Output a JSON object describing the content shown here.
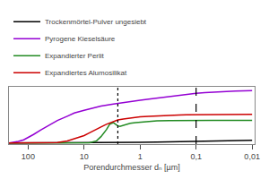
{
  "chart_data": {
    "type": "line",
    "xlabel": "Porendurchmesser dₙ [µm]",
    "log": "x",
    "xlim": [
      220,
      0.009
    ],
    "xticks": [
      100,
      10,
      1,
      {
        "value": 0.1,
        "label": "0,1"
      },
      {
        "value": 0.01,
        "label": "0,01"
      }
    ],
    "ylim": [
      -0.02,
      1.05
    ],
    "tick_labels": "x",
    "grid": false,
    "legend": "upper left",
    "series": [
      {
        "name": "Trockenmörtel-Pulver ungesiebt",
        "color": "black",
        "x": [
          220,
          150,
          100,
          50,
          20,
          10,
          5,
          2,
          1,
          0.5,
          0.2,
          0.1,
          0.05,
          0.02,
          0.01
        ],
        "values": [
          0.0,
          0.0,
          0.0,
          0.0,
          0.0,
          0.0,
          0.005,
          0.008,
          0.012,
          0.018,
          0.025,
          0.032,
          0.04,
          0.046,
          0.05
        ]
      },
      {
        "name": "Pyrogene Kieselsäure",
        "color": "#9400D3",
        "x": [
          220,
          180,
          150,
          120,
          100,
          80,
          60,
          40,
          30,
          20,
          15,
          10,
          7,
          5,
          3,
          2,
          1.5,
          1,
          0.7,
          0.5,
          0.3,
          0.2,
          0.15,
          0.1,
          0.07,
          0.05,
          0.03,
          0.02,
          0.01
        ],
        "values": [
          0.0,
          0.01,
          0.03,
          0.06,
          0.1,
          0.16,
          0.24,
          0.34,
          0.42,
          0.5,
          0.56,
          0.61,
          0.65,
          0.69,
          0.73,
          0.76,
          0.78,
          0.8,
          0.82,
          0.84,
          0.87,
          0.89,
          0.91,
          0.93,
          0.94,
          0.95,
          0.96,
          0.97,
          0.98
        ]
      },
      {
        "name": "Expandierter Perlit",
        "color": "#228B22",
        "x": [
          220,
          100,
          50,
          20,
          10,
          8,
          6,
          5,
          4,
          3.5,
          3.0,
          2.7,
          2.5,
          2.3,
          2.0,
          1.8,
          1.5,
          1.2,
          1.0,
          0.8,
          0.6,
          0.5,
          0.3,
          0.2,
          0.1,
          0.05,
          0.01
        ],
        "values": [
          0.0,
          0.0,
          0.0,
          0.0,
          0.0,
          0.005,
          0.04,
          0.12,
          0.25,
          0.35,
          0.38,
          0.34,
          0.32,
          0.31,
          0.33,
          0.35,
          0.37,
          0.38,
          0.39,
          0.4,
          0.41,
          0.415,
          0.42,
          0.422,
          0.423,
          0.423,
          0.423
        ]
      },
      {
        "name": "Expandiertes Alumosilikat",
        "color": "#CC0000",
        "x": [
          220,
          150,
          100,
          80,
          60,
          40,
          30,
          20,
          15,
          10,
          8,
          6,
          5,
          4,
          3,
          2.5,
          2,
          1.5,
          1,
          0.7,
          0.5,
          0.3,
          0.2,
          0.15,
          0.1,
          0.07,
          0.05,
          0.02,
          0.01
        ],
        "values": [
          0.0,
          0.0,
          0.0,
          0.0,
          0.0,
          0.0,
          0.01,
          0.04,
          0.08,
          0.14,
          0.19,
          0.25,
          0.3,
          0.35,
          0.4,
          0.43,
          0.45,
          0.47,
          0.49,
          0.5,
          0.51,
          0.52,
          0.525,
          0.528,
          0.53,
          0.532,
          0.533,
          0.535,
          0.535
        ]
      }
    ],
    "reference_lines": [
      {
        "x": 2.5,
        "color": "black",
        "line_style": "dotted"
      },
      {
        "x": 0.1,
        "color": "black",
        "line_style": "dashed"
      }
    ]
  }
}
